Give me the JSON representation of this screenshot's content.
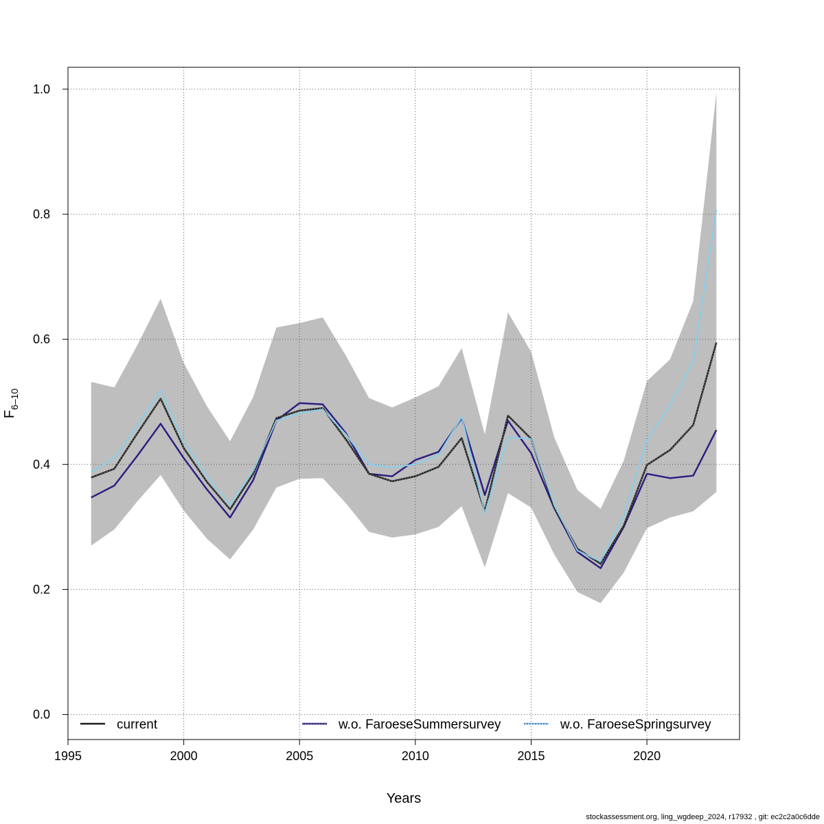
{
  "chart_data": {
    "type": "line",
    "title": "",
    "xlabel": "Years",
    "ylabel_main": "F",
    "ylabel_sub": "6–10",
    "xlim": [
      1995,
      2024
    ],
    "ylim": [
      -0.04,
      1.035
    ],
    "x_ticks": [
      1995,
      2000,
      2005,
      2010,
      2015,
      2020
    ],
    "y_ticks": [
      0.0,
      0.2,
      0.4,
      0.6,
      0.8,
      1.0
    ],
    "y_tick_labels": [
      "0.0",
      "0.2",
      "0.4",
      "0.6",
      "0.8",
      "1.0"
    ],
    "grid": true,
    "legend_position": "bottom",
    "x": [
      1996,
      1997,
      1998,
      1999,
      2000,
      2001,
      2002,
      2003,
      2004,
      2005,
      2006,
      2007,
      2008,
      2009,
      2010,
      2011,
      2012,
      2013,
      2014,
      2015,
      2016,
      2017,
      2018,
      2019,
      2020,
      2021,
      2022,
      2023
    ],
    "band": {
      "lower": [
        0.27,
        0.296,
        0.341,
        0.383,
        0.326,
        0.281,
        0.248,
        0.296,
        0.363,
        0.377,
        0.378,
        0.338,
        0.292,
        0.283,
        0.288,
        0.3,
        0.333,
        0.235,
        0.354,
        0.331,
        0.256,
        0.196,
        0.178,
        0.227,
        0.298,
        0.315,
        0.325,
        0.356
      ],
      "upper": [
        0.532,
        0.523,
        0.591,
        0.665,
        0.562,
        0.493,
        0.437,
        0.508,
        0.619,
        0.626,
        0.635,
        0.574,
        0.506,
        0.491,
        0.507,
        0.525,
        0.586,
        0.448,
        0.643,
        0.58,
        0.443,
        0.359,
        0.329,
        0.406,
        0.533,
        0.568,
        0.661,
        0.995
      ],
      "color": "#bebebe"
    },
    "series": [
      {
        "name": "current",
        "color": "#1a1a1a",
        "values": [
          0.379,
          0.393,
          0.45,
          0.505,
          0.426,
          0.372,
          0.328,
          0.385,
          0.474,
          0.486,
          0.49,
          0.44,
          0.385,
          0.373,
          0.381,
          0.396,
          0.442,
          0.325,
          0.478,
          0.441,
          0.331,
          0.265,
          0.241,
          0.302,
          0.399,
          0.423,
          0.463,
          0.595
        ]
      },
      {
        "name": "w.o. FaroeseSummersurvey",
        "color": "#2e1f80",
        "values": [
          0.347,
          0.366,
          0.414,
          0.465,
          0.41,
          0.36,
          0.315,
          0.375,
          0.47,
          0.498,
          0.496,
          0.45,
          0.385,
          0.381,
          0.407,
          0.42,
          0.474,
          0.351,
          0.47,
          0.418,
          0.33,
          0.26,
          0.234,
          0.3,
          0.385,
          0.378,
          0.382,
          0.455
        ]
      },
      {
        "name": "w.o. FaroeseSpringsurvey",
        "color": "#87ceeb",
        "values": [
          0.388,
          0.41,
          0.462,
          0.518,
          0.436,
          0.382,
          0.335,
          0.39,
          0.47,
          0.482,
          0.488,
          0.448,
          0.4,
          0.395,
          0.4,
          0.415,
          0.476,
          0.322,
          0.443,
          0.441,
          0.335,
          0.262,
          0.245,
          0.318,
          0.438,
          0.495,
          0.565,
          0.807
        ]
      }
    ]
  },
  "footer": "stockassessment.org, ling_wgdeep_2024, r17932 , git: ec2c2a0c6dde"
}
